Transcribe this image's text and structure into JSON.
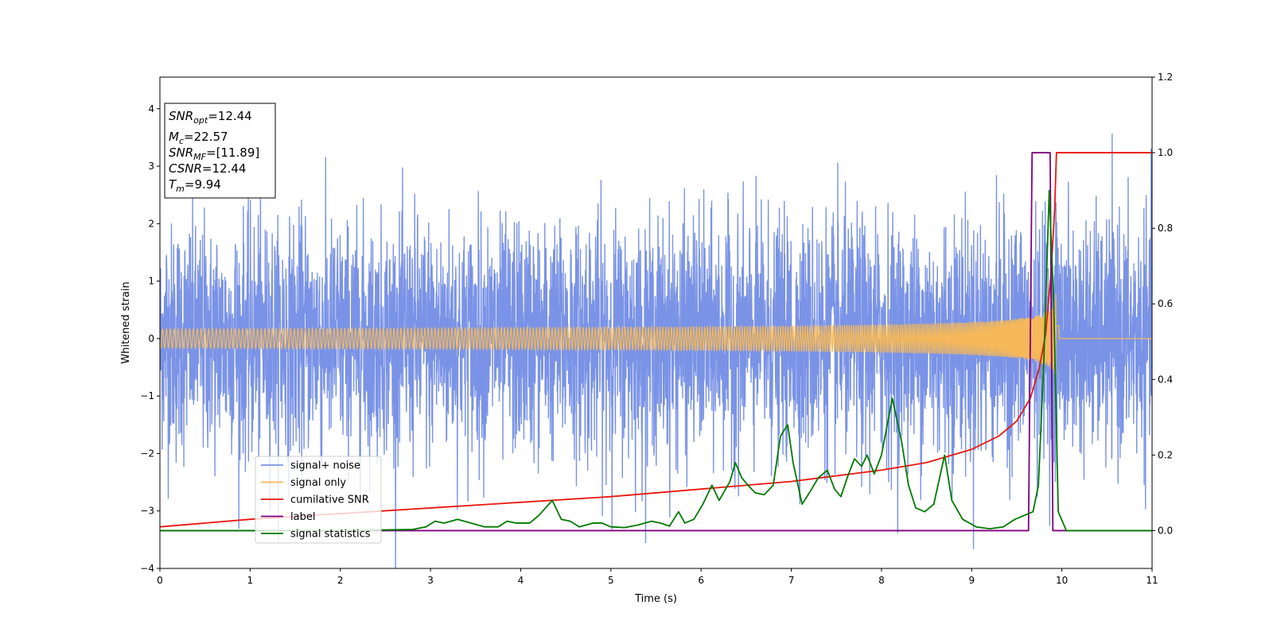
{
  "chart_data": {
    "type": "line",
    "title": "",
    "xlabel": "Time (s)",
    "ylabel": "Whitened strain",
    "ylabel_right": "",
    "xlim": [
      0,
      11
    ],
    "ylim": [
      -4,
      4.55
    ],
    "ylim_right": [
      -0.1,
      1.2
    ],
    "x_ticks": [
      0,
      1,
      2,
      3,
      4,
      5,
      6,
      7,
      8,
      9,
      10,
      11
    ],
    "y_ticks": [
      -4,
      -3,
      -2,
      -1,
      0,
      1,
      2,
      3,
      4
    ],
    "y_right_ticks": [
      "0.0",
      "0.2",
      "0.4",
      "0.6",
      "0.8",
      "1.0",
      "1.2"
    ],
    "grid": false,
    "legend_position": "lower-left",
    "annotation": {
      "lines": [
        {
          "main": "SNR",
          "sub": "opt",
          "rest": "=12.44"
        },
        {
          "main": "M",
          "sub": "c",
          "rest": "=22.57"
        },
        {
          "main": "SNR",
          "sub": "MF",
          "rest": "=[11.89]"
        },
        {
          "main": "CSNR",
          "sub": "",
          "rest": "=12.44"
        },
        {
          "main": "T",
          "sub": "m",
          "rest": "=9.94"
        }
      ]
    },
    "series": [
      {
        "name": "signal+ noise",
        "color": "#7a93e6",
        "axis": "left",
        "noise_sigma": 1.0,
        "t_range": [
          0,
          11
        ]
      },
      {
        "name": "signal only",
        "color": "#f5b85a",
        "axis": "left",
        "t_merger": 9.94,
        "t_end": 9.97,
        "amplitude_at_merger": 1.0
      },
      {
        "name": "cumilative SNR",
        "color": "#e8170e",
        "axis": "right",
        "points": [
          [
            0,
            0.01
          ],
          [
            1,
            0.03
          ],
          [
            2,
            0.045
          ],
          [
            3,
            0.06
          ],
          [
            4,
            0.075
          ],
          [
            5,
            0.09
          ],
          [
            6,
            0.11
          ],
          [
            7,
            0.13
          ],
          [
            8,
            0.16
          ],
          [
            8.5,
            0.18
          ],
          [
            9,
            0.215
          ],
          [
            9.3,
            0.25
          ],
          [
            9.5,
            0.29
          ],
          [
            9.65,
            0.35
          ],
          [
            9.75,
            0.43
          ],
          [
            9.82,
            0.52
          ],
          [
            9.88,
            0.68
          ],
          [
            9.92,
            0.85
          ],
          [
            9.94,
            1.0
          ],
          [
            11,
            1.0
          ]
        ]
      },
      {
        "name": "label",
        "color": "#800080",
        "axis": "right",
        "points": [
          [
            0,
            0
          ],
          [
            9.63,
            0
          ],
          [
            9.67,
            1.0
          ],
          [
            9.87,
            1.0
          ],
          [
            9.9,
            0
          ],
          [
            11,
            0
          ]
        ]
      },
      {
        "name": "signal statistics",
        "color": "#007a00",
        "axis": "right",
        "points": [
          [
            0,
            0.0
          ],
          [
            1,
            0.0
          ],
          [
            2,
            0.0
          ],
          [
            2.8,
            0.003
          ],
          [
            2.95,
            0.01
          ],
          [
            3.05,
            0.025
          ],
          [
            3.15,
            0.02
          ],
          [
            3.3,
            0.03
          ],
          [
            3.45,
            0.02
          ],
          [
            3.6,
            0.01
          ],
          [
            3.75,
            0.01
          ],
          [
            3.85,
            0.025
          ],
          [
            3.95,
            0.02
          ],
          [
            4.1,
            0.02
          ],
          [
            4.2,
            0.04
          ],
          [
            4.35,
            0.08
          ],
          [
            4.45,
            0.03
          ],
          [
            4.55,
            0.025
          ],
          [
            4.65,
            0.01
          ],
          [
            4.8,
            0.02
          ],
          [
            4.9,
            0.02
          ],
          [
            5.0,
            0.01
          ],
          [
            5.15,
            0.008
          ],
          [
            5.3,
            0.015
          ],
          [
            5.45,
            0.025
          ],
          [
            5.55,
            0.02
          ],
          [
            5.65,
            0.012
          ],
          [
            5.75,
            0.05
          ],
          [
            5.82,
            0.02
          ],
          [
            5.92,
            0.03
          ],
          [
            6.02,
            0.07
          ],
          [
            6.12,
            0.12
          ],
          [
            6.2,
            0.08
          ],
          [
            6.32,
            0.13
          ],
          [
            6.38,
            0.18
          ],
          [
            6.45,
            0.14
          ],
          [
            6.52,
            0.12
          ],
          [
            6.6,
            0.1
          ],
          [
            6.7,
            0.095
          ],
          [
            6.8,
            0.12
          ],
          [
            6.88,
            0.25
          ],
          [
            6.96,
            0.28
          ],
          [
            7.02,
            0.18
          ],
          [
            7.12,
            0.07
          ],
          [
            7.2,
            0.1
          ],
          [
            7.3,
            0.14
          ],
          [
            7.4,
            0.16
          ],
          [
            7.48,
            0.11
          ],
          [
            7.55,
            0.09
          ],
          [
            7.62,
            0.14
          ],
          [
            7.7,
            0.19
          ],
          [
            7.78,
            0.17
          ],
          [
            7.84,
            0.2
          ],
          [
            7.92,
            0.15
          ],
          [
            8.0,
            0.2
          ],
          [
            8.12,
            0.35
          ],
          [
            8.22,
            0.24
          ],
          [
            8.3,
            0.12
          ],
          [
            8.38,
            0.06
          ],
          [
            8.48,
            0.05
          ],
          [
            8.58,
            0.07
          ],
          [
            8.7,
            0.2
          ],
          [
            8.78,
            0.08
          ],
          [
            8.9,
            0.03
          ],
          [
            9.05,
            0.01
          ],
          [
            9.2,
            0.005
          ],
          [
            9.35,
            0.01
          ],
          [
            9.48,
            0.03
          ],
          [
            9.58,
            0.04
          ],
          [
            9.68,
            0.05
          ],
          [
            9.74,
            0.12
          ],
          [
            9.8,
            0.45
          ],
          [
            9.86,
            0.9
          ],
          [
            9.91,
            0.6
          ],
          [
            9.96,
            0.05
          ],
          [
            10.05,
            0.0
          ],
          [
            10.2,
            0.0
          ],
          [
            11,
            0.0
          ]
        ]
      }
    ]
  }
}
